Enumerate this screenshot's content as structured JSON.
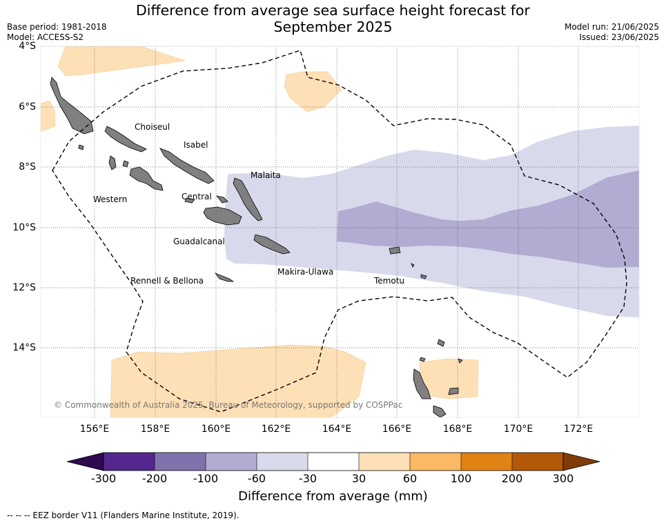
{
  "title": {
    "line1": "Difference from average sea surface height forecast for",
    "line2": "September 2025"
  },
  "meta": {
    "base_period": "Base period: 1981-2018",
    "model": "Model: ACCESS-S2",
    "model_run": "Model run: 21/06/2025",
    "issued": "Issued: 23/06/2025"
  },
  "axes": {
    "lat_labels": [
      "4°S",
      "6°S",
      "8°S",
      "10°S",
      "12°S",
      "14°S"
    ],
    "lon_labels": [
      "156°E",
      "158°E",
      "160°E",
      "162°E",
      "164°E",
      "166°E",
      "168°E",
      "170°E",
      "172°E"
    ]
  },
  "places": {
    "choiseul": "Choiseul",
    "isabel": "Isabel",
    "malaita": "Malaita",
    "western": "Western",
    "central": "Central",
    "guadalcanal": "Guadalcanal",
    "makira_ulawa": "Makira-Ulawa",
    "temotu": "Temotu",
    "rennell_bellona": "Rennell & Bellona"
  },
  "copyright": "© Commonwealth of Australia 2025, Bureau of Meteorology, supported by COSPPac",
  "colorbar": {
    "title": "Difference from average (mm)",
    "ticks": [
      "-300",
      "-200",
      "-100",
      "-60",
      "-30",
      "30",
      "60",
      "100",
      "200",
      "300"
    ],
    "colors": {
      "under": "#2d0a4e",
      "c1": "#54278f",
      "c2": "#8073ac",
      "c3": "#b2abd2",
      "c4": "#d8daeb",
      "c5": "#ffffff",
      "c6": "#fee0b6",
      "c7": "#fdb863",
      "c8": "#e08214",
      "c9": "#b35806",
      "over": "#7f3b08"
    }
  },
  "legend_note": "--  --  -- EEZ border V11 (Flanders Marine Institute, 2019)."
}
